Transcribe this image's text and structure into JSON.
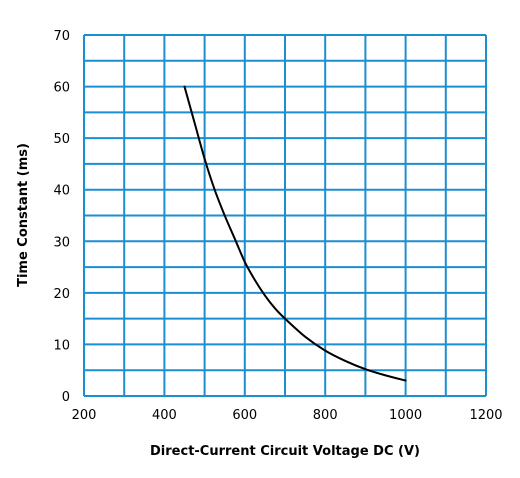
{
  "chart_data": {
    "type": "line",
    "title": "",
    "xlabel": "Direct-Current  Circuit Voltage DC (V)",
    "ylabel": "Time Constant (ms)",
    "xlim": [
      200,
      1200
    ],
    "ylim": [
      0,
      70
    ],
    "xticks": [
      200,
      400,
      600,
      800,
      1000,
      1200
    ],
    "yticks": [
      0,
      10,
      20,
      30,
      40,
      50,
      60,
      70
    ],
    "x_grid_step": 100,
    "y_grid_step": 5,
    "grid": true,
    "grid_color": "#1a8fd1",
    "line_color": "#000000",
    "series": [
      {
        "x": [
          450,
          475,
          500,
          525,
          550,
          575,
          600,
          625,
          650,
          675,
          700,
          750,
          800,
          850,
          900,
          950,
          1000
        ],
        "y": [
          60,
          53,
          46,
          40,
          35,
          30.5,
          26,
          22.5,
          19.5,
          17,
          15,
          11.5,
          8.8,
          6.8,
          5.2,
          4,
          3
        ]
      }
    ]
  }
}
